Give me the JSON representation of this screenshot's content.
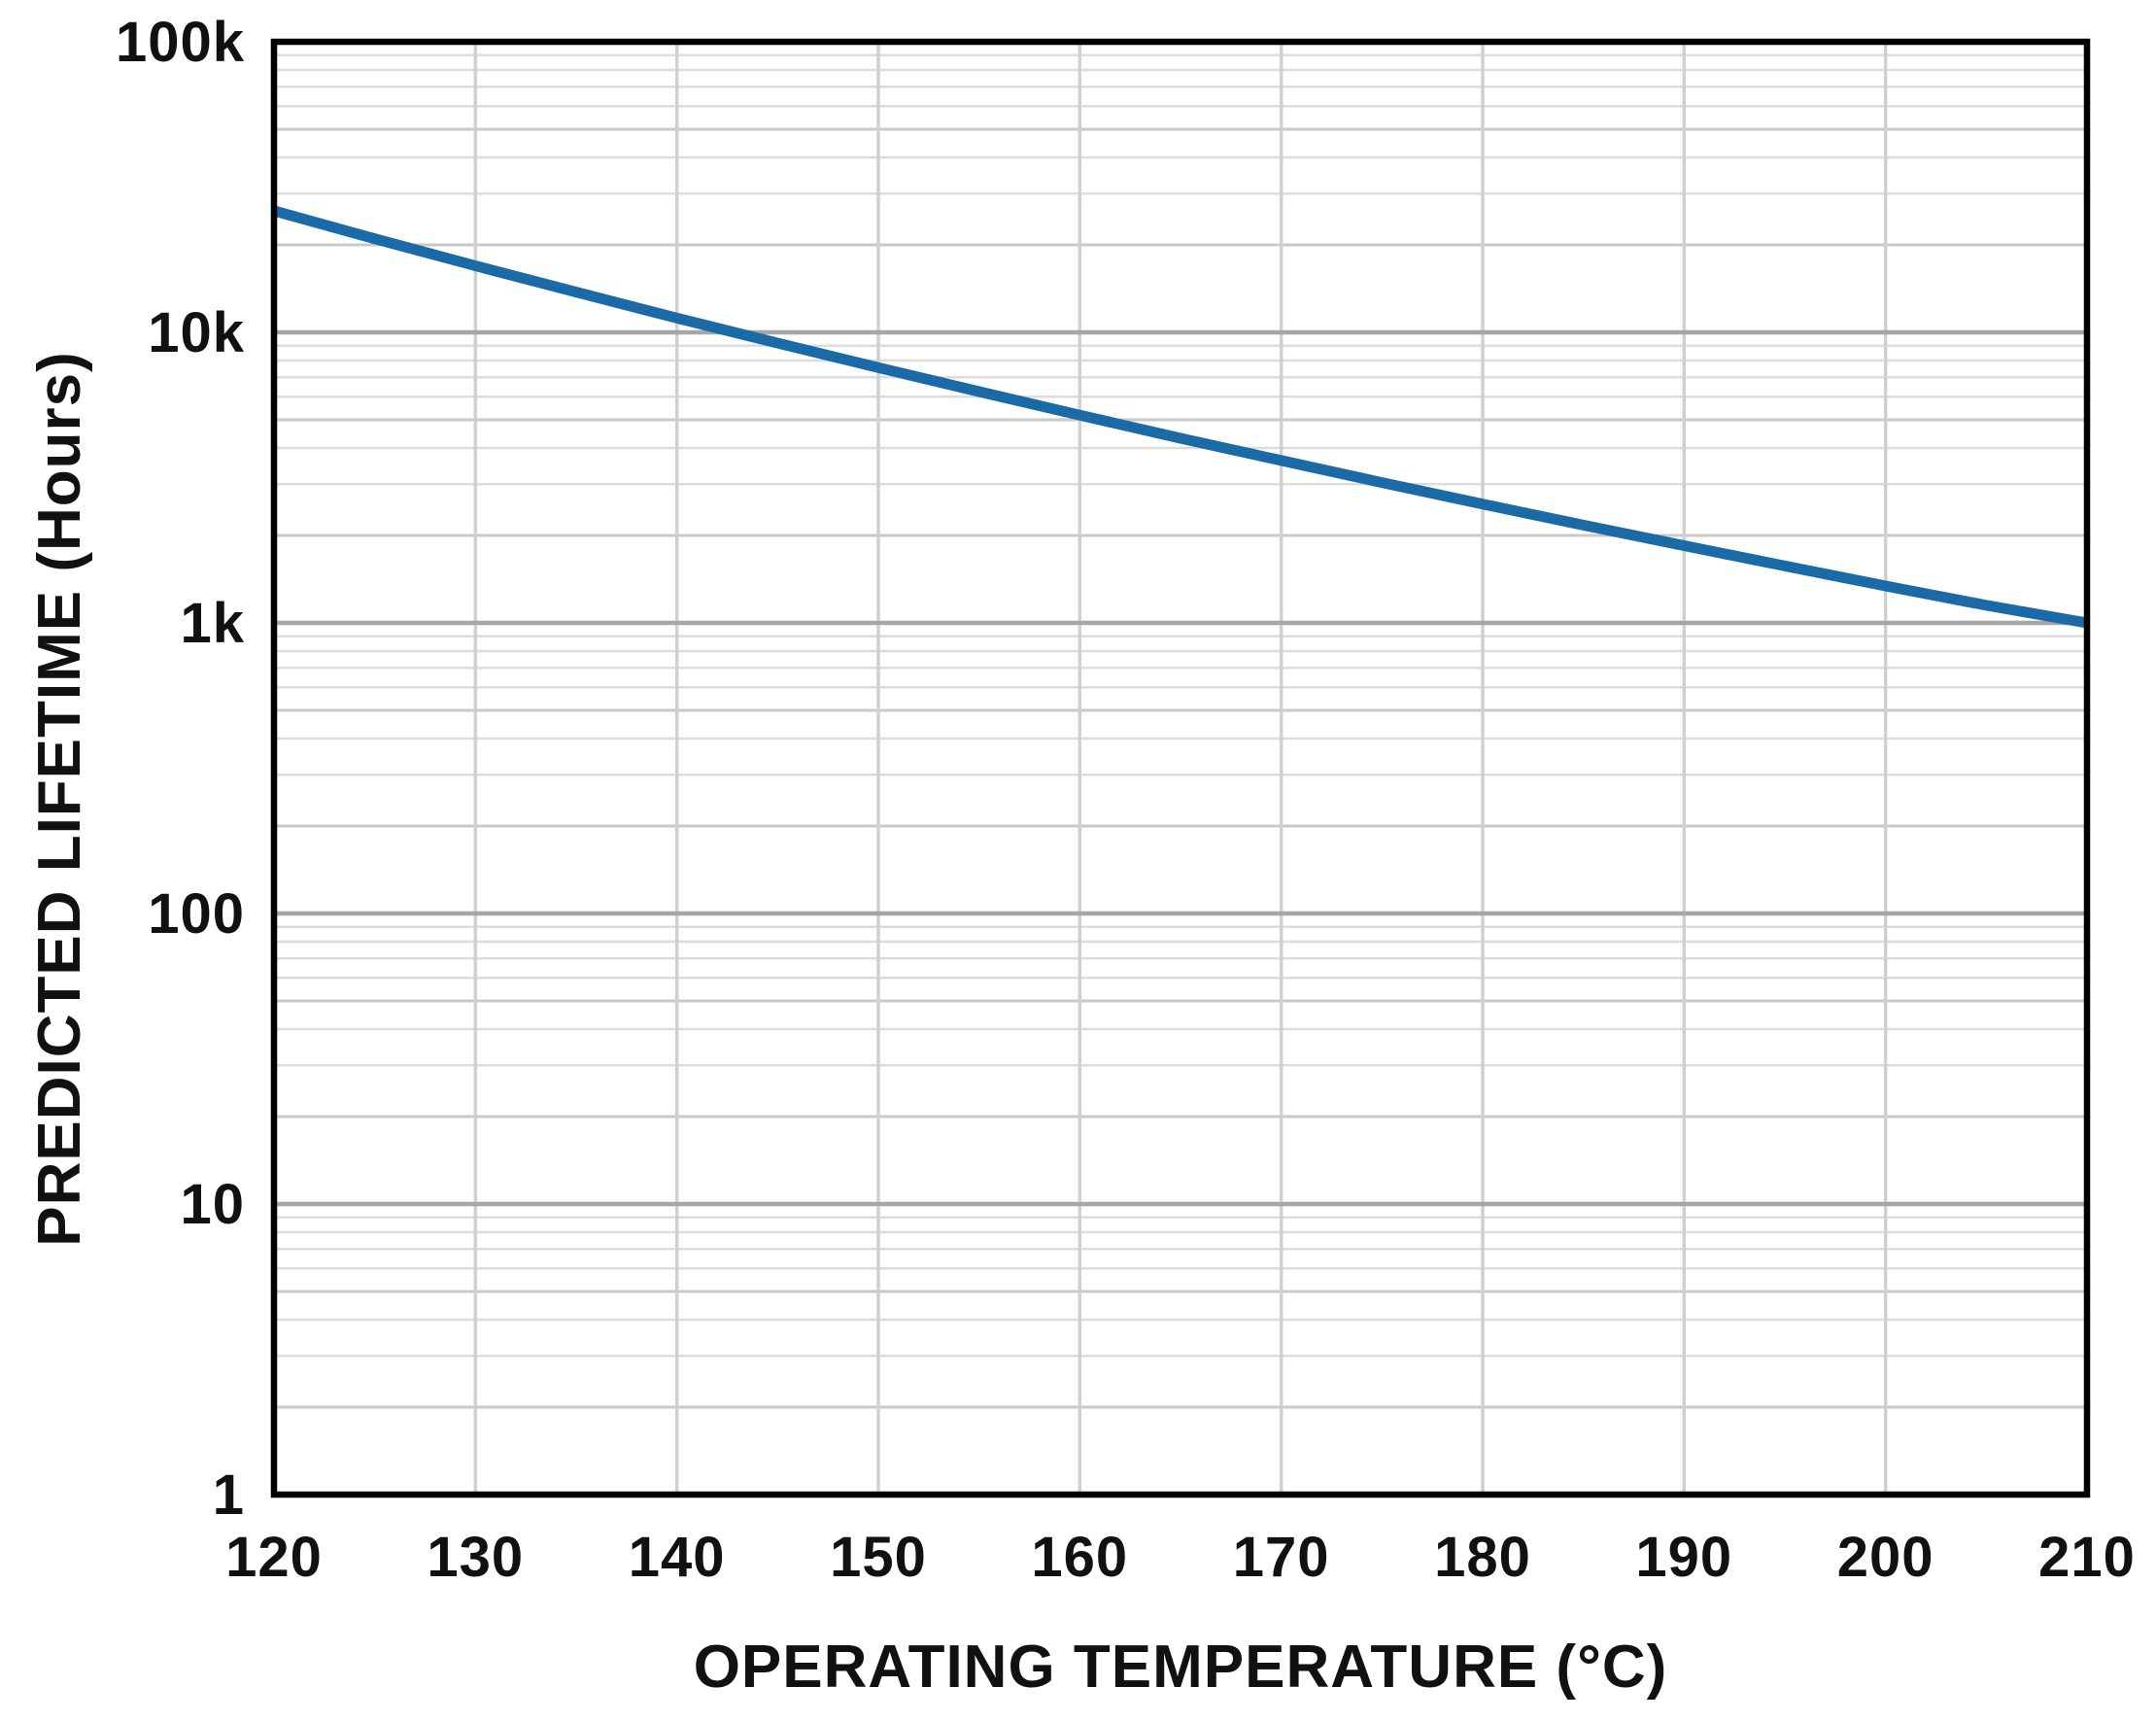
{
  "figure": {
    "background": "#ffffff"
  },
  "colors": {
    "line": "#1a6aa7",
    "grid_minor": "#dcdcdc",
    "grid_mid": "#c9c9c9",
    "grid_major": "#a6a6a6",
    "grid_vertical": "#d0d0d0",
    "border": "#000000",
    "text": "#111111"
  },
  "chart_data": {
    "type": "line",
    "title": "",
    "xlabel": "OPERATING TEMPERATURE (°C)",
    "ylabel": "PREDICTED LIFETIME (Hours)",
    "x_scale": "linear",
    "y_scale": "log",
    "xlim": [
      120,
      210
    ],
    "ylim": [
      1,
      100000
    ],
    "x_ticks": [
      120,
      130,
      140,
      150,
      160,
      170,
      180,
      190,
      200,
      210
    ],
    "x_tick_labels": [
      "120",
      "130",
      "140",
      "150",
      "160",
      "170",
      "180",
      "190",
      "200",
      "210"
    ],
    "y_ticks": [
      1,
      10,
      100,
      1000,
      10000,
      100000
    ],
    "y_tick_labels": [
      "1",
      "10",
      "100",
      "1k",
      "10k",
      "100k"
    ],
    "grid": "on",
    "log_minor_gridlines": true,
    "legend_position": "none",
    "series": [
      {
        "name": "Predicted Lifetime",
        "color": "#1a6aa7",
        "points": [
          [
            120,
            26200
          ],
          [
            125,
            21000
          ],
          [
            130,
            16950
          ],
          [
            135,
            13750
          ],
          [
            140,
            11200
          ],
          [
            145,
            9180
          ],
          [
            150,
            7560
          ],
          [
            155,
            6250
          ],
          [
            160,
            5190
          ],
          [
            165,
            4320
          ],
          [
            170,
            3620
          ],
          [
            175,
            3040
          ],
          [
            180,
            2565
          ],
          [
            185,
            2170
          ],
          [
            190,
            1845
          ],
          [
            195,
            1570
          ],
          [
            200,
            1340
          ],
          [
            205,
            1150
          ],
          [
            210,
            1000
          ]
        ]
      }
    ]
  }
}
